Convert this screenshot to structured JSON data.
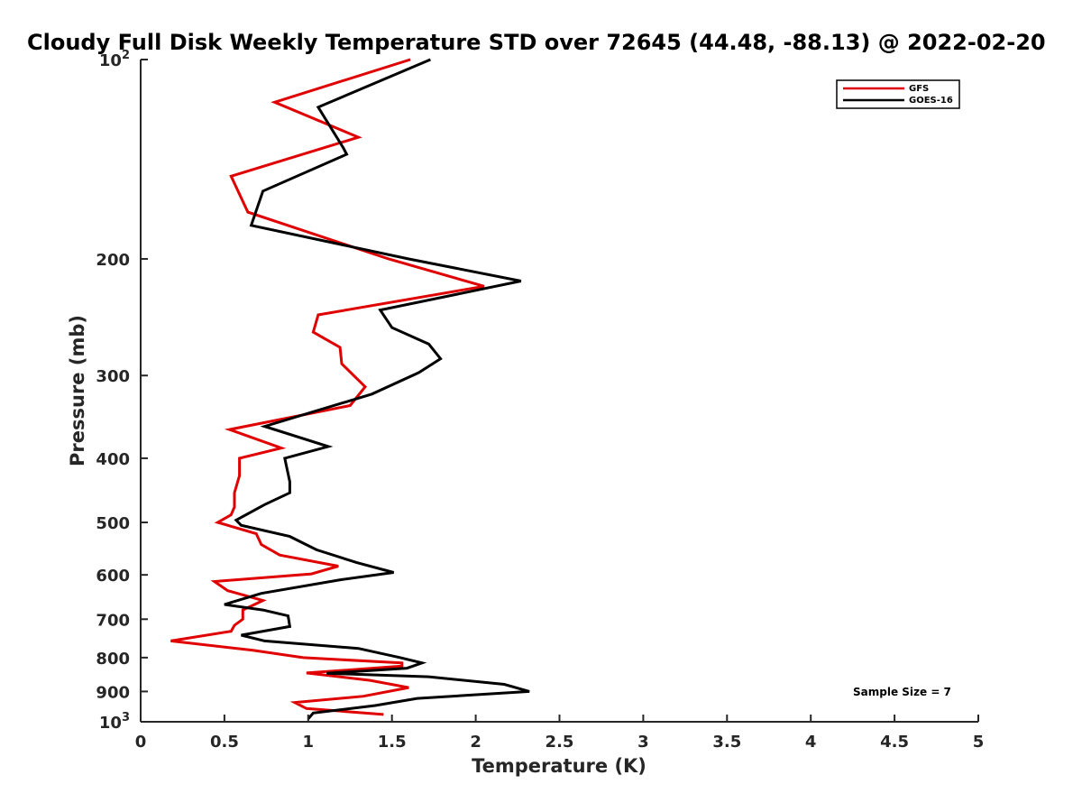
{
  "chart_data": {
    "type": "line",
    "title": "Cloudy Full Disk Weekly Temperature STD over 72645 (44.48, -88.13) @ 2022-02-20",
    "xlabel": "Temperature (K)",
    "ylabel": "Pressure (mb)",
    "xlim": [
      0,
      5
    ],
    "ylim": [
      100,
      1000
    ],
    "y_scale": "log",
    "y_reversed": true,
    "x_ticks": [
      "0",
      "0.5",
      "1",
      "1.5",
      "2",
      "2.5",
      "3",
      "3.5",
      "4",
      "4.5",
      "5"
    ],
    "y_ticks": [
      {
        "value": 100,
        "base": "10",
        "exp": "2"
      },
      {
        "value": 200,
        "label": "200"
      },
      {
        "value": 300,
        "label": "300"
      },
      {
        "value": 400,
        "label": "400"
      },
      {
        "value": 500,
        "label": "500"
      },
      {
        "value": 600,
        "label": "600"
      },
      {
        "value": 700,
        "label": "700"
      },
      {
        "value": 800,
        "label": "800"
      },
      {
        "value": 900,
        "label": "900"
      },
      {
        "value": 1000,
        "base": "10",
        "exp": "3"
      }
    ],
    "grid": false,
    "legend_position": "top-right",
    "series": [
      {
        "name": "GFS",
        "color": "#e00000",
        "x": [
          1.61,
          0.8,
          1.3,
          0.54,
          0.64,
          1.48,
          2.05,
          1.06,
          1.03,
          1.19,
          1.2,
          1.34,
          1.25,
          0.53,
          0.84,
          0.59,
          0.59,
          0.56,
          0.56,
          0.54,
          0.46,
          0.69,
          0.72,
          0.83,
          1.18,
          1.02,
          0.44,
          0.52,
          0.73,
          0.61,
          0.61,
          0.56,
          0.54,
          0.18,
          0.67,
          0.97,
          1.56,
          1.56,
          0.99,
          1.37,
          1.6,
          1.33,
          0.92,
          0.99,
          1.45
        ],
        "y": [
          100,
          116,
          131,
          150,
          170,
          200,
          220,
          243,
          258,
          272,
          288,
          312,
          333,
          362,
          386,
          400,
          425,
          451,
          474,
          487,
          500,
          520,
          540,
          560,
          582,
          598,
          614,
          634,
          656,
          678,
          700,
          715,
          730,
          755,
          780,
          800,
          815,
          824,
          844,
          866,
          888,
          915,
          935,
          955,
          975
        ]
      },
      {
        "name": "GOES-16",
        "color": "#000000",
        "x": [
          1.73,
          1.06,
          1.21,
          1.23,
          0.73,
          0.66,
          1.6,
          2.27,
          1.43,
          1.5,
          1.72,
          1.79,
          1.66,
          1.38,
          0.74,
          1.12,
          0.86,
          0.89,
          0.89,
          0.74,
          0.57,
          0.6,
          0.89,
          1.05,
          1.29,
          1.51,
          1.2,
          0.72,
          0.5,
          0.73,
          0.88,
          0.89,
          0.6,
          0.74,
          1.3,
          1.55,
          1.68,
          1.59,
          1.11,
          1.72,
          2.17,
          2.32,
          1.65,
          1.4,
          1.03,
          1.0
        ],
        "y": [
          100,
          118,
          136,
          139,
          158,
          178,
          200,
          216,
          239,
          254,
          269,
          283,
          297,
          320,
          358,
          384,
          400,
          434,
          451,
          470,
          496,
          505,
          525,
          550,
          575,
          595,
          610,
          640,
          665,
          678,
          692,
          718,
          740,
          755,
          775,
          800,
          815,
          830,
          845,
          855,
          878,
          900,
          922,
          945,
          970,
          990
        ]
      }
    ],
    "annotation": "Sample Size = 7"
  }
}
